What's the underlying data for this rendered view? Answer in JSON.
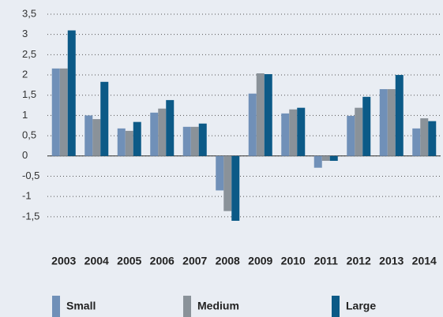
{
  "chart_data": {
    "type": "bar",
    "categories": [
      "2003",
      "2004",
      "2005",
      "2006",
      "2007",
      "2008",
      "2009",
      "2010",
      "2011",
      "2012",
      "2013",
      "2014"
    ],
    "series": [
      {
        "name": "Small",
        "color": "#7090b8",
        "values": [
          2.16,
          1.0,
          0.68,
          1.07,
          0.72,
          -0.85,
          1.54,
          1.05,
          -0.29,
          0.99,
          1.65,
          0.68
        ]
      },
      {
        "name": "Medium",
        "color": "#8a9299",
        "values": [
          2.16,
          0.91,
          0.62,
          1.17,
          0.72,
          -1.36,
          2.04,
          1.15,
          -0.12,
          1.19,
          1.65,
          0.93
        ]
      },
      {
        "name": "Large",
        "color": "#0c5a87",
        "values": [
          3.1,
          1.83,
          0.84,
          1.38,
          0.8,
          -1.6,
          2.02,
          1.19,
          -0.12,
          1.46,
          2.0,
          0.86
        ]
      }
    ],
    "ylim": [
      -1.6,
      3.5
    ],
    "yticks": [
      {
        "value": 3.5,
        "label": "3,5"
      },
      3,
      {
        "value": 2.5,
        "label": "2,5"
      },
      2,
      {
        "value": 1.5,
        "label": "1,5"
      },
      1,
      {
        "value": 0.5,
        "label": "0,5"
      },
      0,
      {
        "value": -0.5,
        "label": "-0,5"
      },
      -1,
      {
        "value": -1.5,
        "label": "-1,5"
      }
    ],
    "grid": true
  }
}
